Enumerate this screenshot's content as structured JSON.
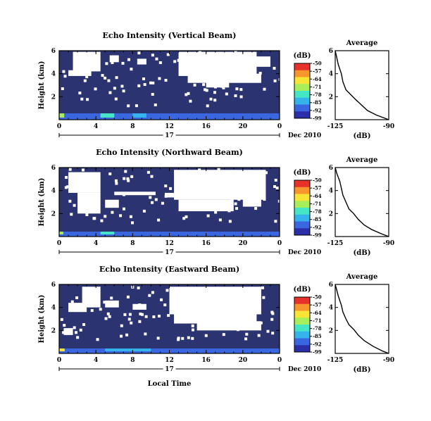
{
  "colors": {
    "background": "#2b3371",
    "noData": "#ffffff",
    "colormap": [
      "#2b2fa8",
      "#3a66e0",
      "#34b4ea",
      "#45e6c6",
      "#a8ee5a",
      "#f7e437",
      "#f7962c",
      "#e6322a"
    ]
  },
  "chart_data": [
    {
      "type": "heatmap",
      "title": "Echo Intensity (Vertical Beam)",
      "ylabel": "Height (km)",
      "xlabel": "",
      "x_ticks": [
        "0",
        "4",
        "8",
        "12",
        "16",
        "20",
        "0"
      ],
      "x_range": [
        0,
        24
      ],
      "y_ticks": [
        "6",
        "4",
        "2"
      ],
      "y_range": [
        0,
        6
      ],
      "date_label": "17",
      "date_suffix": "Dec 2010",
      "colorbar": {
        "unit": "(dB)",
        "ticks": [
          "-50",
          "-57",
          "-64",
          "-71",
          "-78",
          "-85",
          "-92",
          "-99"
        ],
        "range": [
          -99,
          -50
        ]
      },
      "average_profile": {
        "title": "Average",
        "xlabel": "(dB)",
        "x_ticks": [
          "-125",
          "-90"
        ],
        "x_range": [
          -125,
          -90
        ],
        "y_ticks": [
          "6",
          "4",
          "2"
        ],
        "points": [
          [
            -125,
            6.0
          ],
          [
            -124,
            5.4
          ],
          [
            -123,
            4.8
          ],
          [
            -121,
            4.0
          ],
          [
            -120,
            3.3
          ],
          [
            -118,
            2.6
          ],
          [
            -115,
            2.2
          ],
          [
            -112,
            1.8
          ],
          [
            -108,
            1.3
          ],
          [
            -104,
            0.8
          ],
          [
            -98,
            0.4
          ],
          [
            -92,
            0.1
          ],
          [
            -90,
            0
          ]
        ]
      },
      "no_data_blocks": [
        [
          1.5,
          4.5,
          4.2,
          5.9
        ],
        [
          1.0,
          3.5,
          3.8,
          4.3
        ],
        [
          5.5,
          6.5,
          5.0,
          5.6
        ],
        [
          8.5,
          9.5,
          4.8,
          5.3
        ],
        [
          13.0,
          21.5,
          3.8,
          5.9
        ],
        [
          14.0,
          22.0,
          3.2,
          4.0
        ],
        [
          16.0,
          18.5,
          2.8,
          3.3
        ],
        [
          21.0,
          23.0,
          4.6,
          5.5
        ]
      ],
      "surface_echo": [
        [
          0,
          0.55,
          -70
        ],
        [
          4.5,
          6.0,
          -78
        ],
        [
          8.0,
          9.5,
          -85
        ],
        [
          0,
          24,
          -92
        ]
      ]
    },
    {
      "type": "heatmap",
      "title": "Echo Intensity (Northward Beam)",
      "ylabel": "Height (km)",
      "xlabel": "",
      "x_ticks": [
        "0",
        "4",
        "8",
        "12",
        "16",
        "20",
        "0"
      ],
      "x_range": [
        0,
        24
      ],
      "y_ticks": [
        "6",
        "4",
        "2"
      ],
      "y_range": [
        0,
        6
      ],
      "date_label": "17",
      "date_suffix": "Dec 2010",
      "colorbar": {
        "unit": "(dB)",
        "ticks": [
          "-50",
          "-57",
          "-64",
          "-71",
          "-78",
          "-85",
          "-92",
          "-99"
        ],
        "range": [
          -99,
          -50
        ]
      },
      "average_profile": {
        "title": "Average",
        "xlabel": "(dB)",
        "x_ticks": [
          "-125",
          "-90"
        ],
        "x_range": [
          -125,
          -90
        ],
        "y_ticks": [
          "6",
          "4",
          "2"
        ],
        "points": [
          [
            -125,
            6.0
          ],
          [
            -124,
            5.5
          ],
          [
            -122,
            4.8
          ],
          [
            -121,
            4.2
          ],
          [
            -120,
            3.6
          ],
          [
            -118,
            3.0
          ],
          [
            -116,
            2.4
          ],
          [
            -113,
            2.0
          ],
          [
            -110,
            1.5
          ],
          [
            -106,
            1.0
          ],
          [
            -101,
            0.6
          ],
          [
            -95,
            0.25
          ],
          [
            -90,
            0
          ]
        ]
      },
      "no_data_blocks": [
        [
          1.0,
          4.5,
          3.8,
          5.6
        ],
        [
          2.0,
          4.5,
          2.0,
          3.8
        ],
        [
          5.0,
          6.5,
          2.5,
          3.2
        ],
        [
          6.0,
          10.5,
          3.6,
          3.9
        ],
        [
          11.5,
          12.5,
          3.4,
          3.8
        ],
        [
          12.5,
          22.5,
          3.2,
          5.8
        ],
        [
          13.0,
          19.0,
          2.2,
          3.2
        ],
        [
          20.0,
          22.0,
          2.6,
          3.3
        ]
      ],
      "surface_echo": [
        [
          0,
          0.45,
          -71
        ],
        [
          4.5,
          6.0,
          -80
        ],
        [
          0,
          24,
          -92
        ]
      ]
    },
    {
      "type": "heatmap",
      "title": "Echo Intensity (Eastward Beam)",
      "ylabel": "Height (km)",
      "xlabel": "Local Time",
      "x_ticks": [
        "0",
        "4",
        "8",
        "12",
        "16",
        "20",
        "0"
      ],
      "x_range": [
        0,
        24
      ],
      "y_ticks": [
        "6",
        "4",
        "2"
      ],
      "y_range": [
        0,
        6
      ],
      "date_label": "17",
      "date_suffix": "Dec 2010",
      "colorbar": {
        "unit": "(dB)",
        "ticks": [
          "-50",
          "-57",
          "-64",
          "-71",
          "-78",
          "-85",
          "-92",
          "-99"
        ],
        "range": [
          -99,
          -50
        ]
      },
      "average_profile": {
        "title": "Average",
        "xlabel": "(dB)",
        "x_ticks": [
          "-125",
          "-90"
        ],
        "x_range": [
          -125,
          -90
        ],
        "y_ticks": [
          "6",
          "4",
          "2"
        ],
        "points": [
          [
            -125,
            6.0
          ],
          [
            -124,
            5.5
          ],
          [
            -123,
            5.0
          ],
          [
            -122,
            4.6
          ],
          [
            -121,
            4.2
          ],
          [
            -120,
            3.6
          ],
          [
            -118,
            3.0
          ],
          [
            -116,
            2.5
          ],
          [
            -113,
            2.1
          ],
          [
            -110,
            1.6
          ],
          [
            -106,
            1.1
          ],
          [
            -100,
            0.6
          ],
          [
            -94,
            0.2
          ],
          [
            -90,
            0
          ]
        ]
      },
      "no_data_blocks": [
        [
          2.5,
          4.5,
          4.0,
          5.8
        ],
        [
          1.0,
          3.0,
          3.6,
          4.4
        ],
        [
          5.0,
          6.5,
          4.0,
          4.6
        ],
        [
          12.0,
          22.0,
          3.4,
          5.8
        ],
        [
          12.5,
          21.5,
          2.6,
          3.6
        ],
        [
          15.0,
          22.0,
          2.0,
          2.8
        ],
        [
          0.5,
          1.5,
          1.6,
          2.2
        ],
        [
          8.0,
          9.5,
          3.8,
          4.3
        ]
      ],
      "surface_echo": [
        [
          0,
          0.6,
          -68
        ],
        [
          5.0,
          10.0,
          -86
        ],
        [
          0,
          24,
          -92
        ]
      ]
    }
  ]
}
